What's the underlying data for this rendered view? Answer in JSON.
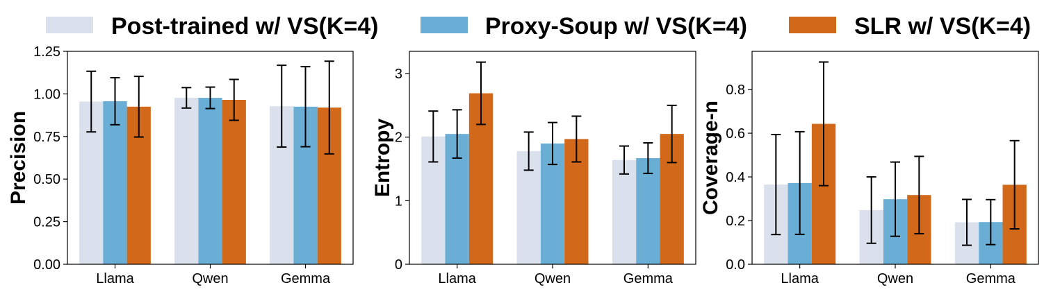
{
  "legend": {
    "items": [
      {
        "label": "Post-trained w/ VS(K=4)",
        "color": "#dae1ec"
      },
      {
        "label": "Proxy-Soup w/ VS(K=4)",
        "color": "#6aaed6"
      },
      {
        "label": "SLR w/ VS(K=4)",
        "color": "#d2691a"
      }
    ]
  },
  "chart_data": [
    {
      "type": "bar",
      "ylabel": "Precision",
      "categories": [
        "Llama",
        "Qwen",
        "Gemma"
      ],
      "ylim": [
        0,
        1.25
      ],
      "yticks": [
        0,
        0.25,
        0.5,
        0.75,
        1.0,
        1.25
      ],
      "ytick_labels": [
        "0.00",
        "0.25",
        "0.50",
        "0.75",
        "1.00",
        "1.25"
      ],
      "series": [
        {
          "name": "Post-trained w/ VS(K=4)",
          "values": [
            0.955,
            0.977,
            0.928
          ],
          "errors": [
            0.178,
            0.06,
            0.24
          ]
        },
        {
          "name": "Proxy-Soup w/ VS(K=4)",
          "values": [
            0.957,
            0.977,
            0.925
          ],
          "errors": [
            0.138,
            0.063,
            0.235
          ]
        },
        {
          "name": "SLR w/ VS(K=4)",
          "values": [
            0.925,
            0.965,
            0.92
          ],
          "errors": [
            0.178,
            0.12,
            0.272
          ]
        }
      ]
    },
    {
      "type": "bar",
      "ylabel": "Entropy",
      "categories": [
        "Llama",
        "Qwen",
        "Gemma"
      ],
      "ylim": [
        0,
        3.35
      ],
      "yticks": [
        0,
        1,
        2,
        3
      ],
      "ytick_labels": [
        "0",
        "1",
        "2",
        "3"
      ],
      "series": [
        {
          "name": "Post-trained w/ VS(K=4)",
          "values": [
            2.01,
            1.78,
            1.64
          ],
          "errors": [
            0.4,
            0.3,
            0.22
          ]
        },
        {
          "name": "Proxy-Soup w/ VS(K=4)",
          "values": [
            2.05,
            1.9,
            1.67
          ],
          "errors": [
            0.38,
            0.33,
            0.24
          ]
        },
        {
          "name": "SLR w/ VS(K=4)",
          "values": [
            2.69,
            1.97,
            2.05
          ],
          "errors": [
            0.49,
            0.36,
            0.45
          ]
        }
      ]
    },
    {
      "type": "bar",
      "ylabel": "Coverage-n",
      "categories": [
        "Llama",
        "Qwen",
        "Gemma"
      ],
      "ylim": [
        0,
        0.975
      ],
      "yticks": [
        0,
        0.2,
        0.4,
        0.6,
        0.8
      ],
      "ytick_labels": [
        "0.0",
        "0.2",
        "0.4",
        "0.6",
        "0.8"
      ],
      "series": [
        {
          "name": "Post-trained w/ VS(K=4)",
          "values": [
            0.365,
            0.248,
            0.192
          ],
          "errors": [
            0.229,
            0.152,
            0.105
          ]
        },
        {
          "name": "Proxy-Soup w/ VS(K=4)",
          "values": [
            0.372,
            0.298,
            0.193
          ],
          "errors": [
            0.235,
            0.17,
            0.103
          ]
        },
        {
          "name": "SLR w/ VS(K=4)",
          "values": [
            0.643,
            0.317,
            0.364
          ],
          "errors": [
            0.283,
            0.177,
            0.202
          ]
        }
      ]
    }
  ]
}
